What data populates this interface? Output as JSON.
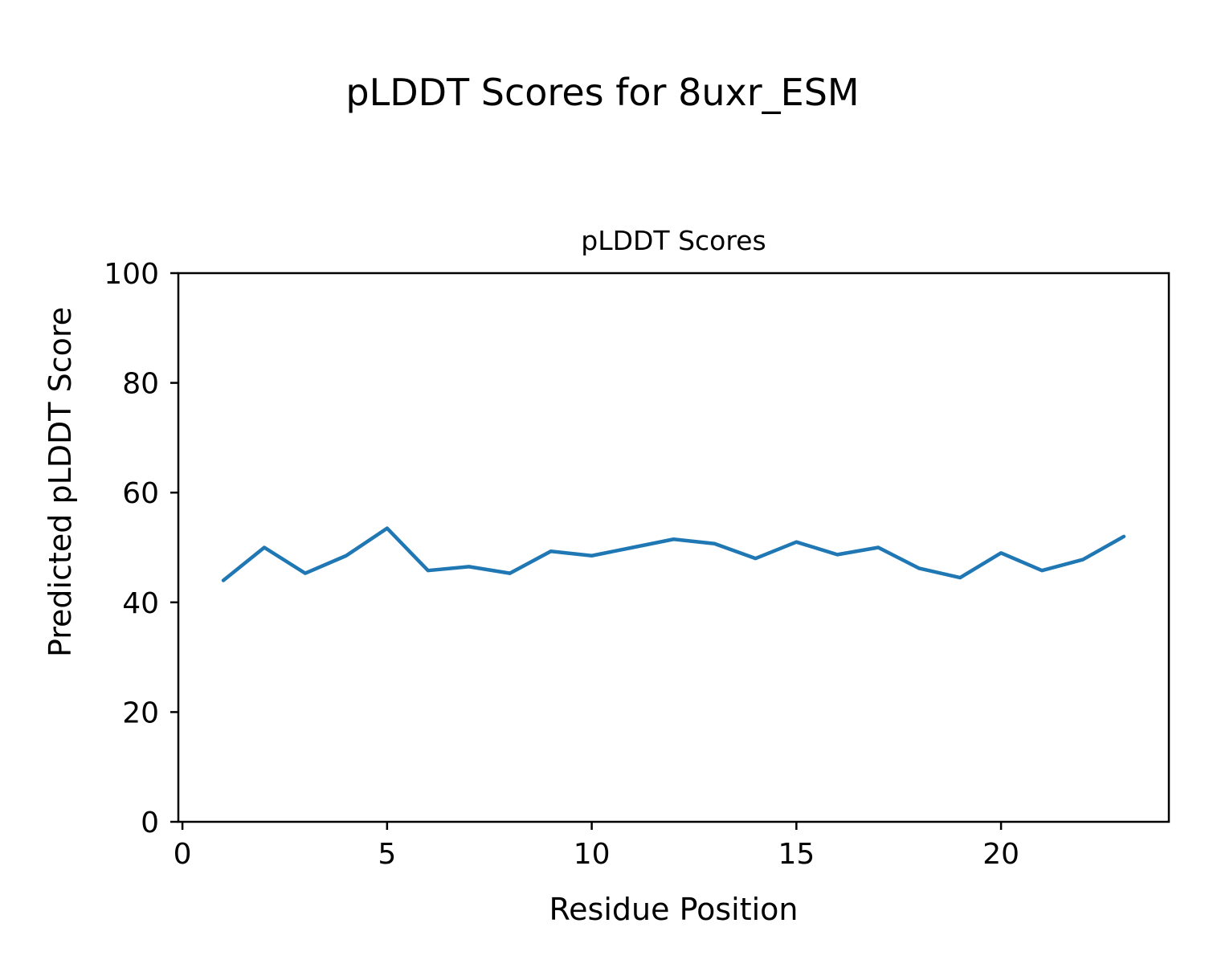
{
  "figure": {
    "suptitle": "pLDDT Scores for 8uxr_ESM"
  },
  "chart_data": {
    "type": "line",
    "title": "pLDDT Scores",
    "xlabel": "Residue Position",
    "ylabel": "Predicted pLDDT Score",
    "x": [
      1,
      2,
      3,
      4,
      5,
      6,
      7,
      8,
      9,
      10,
      11,
      12,
      13,
      14,
      15,
      16,
      17,
      18,
      19,
      20,
      21,
      22,
      23
    ],
    "values": [
      44.0,
      50.0,
      45.3,
      48.5,
      53.5,
      45.8,
      46.5,
      45.3,
      49.3,
      48.5,
      50.0,
      51.5,
      50.7,
      48.0,
      51.0,
      48.7,
      50.0,
      46.2,
      44.5,
      49.0,
      45.8,
      47.8,
      52.0
    ],
    "xlim": [
      -0.1,
      24.1
    ],
    "ylim": [
      0,
      100
    ],
    "xticks": [
      0,
      5,
      10,
      15,
      20
    ],
    "yticks": [
      0,
      20,
      40,
      60,
      80,
      100
    ],
    "line_color": "#1f77b4",
    "axis_color": "#000000",
    "grid": false,
    "legend_position": "none"
  }
}
